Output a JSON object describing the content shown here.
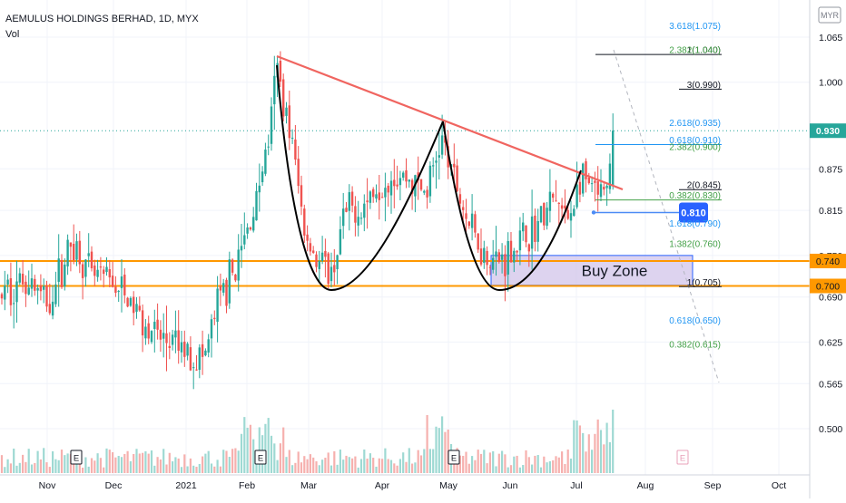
{
  "chart_data": {
    "type": "candlestick",
    "title": "AEMULUS HOLDINGS BERHAD, 1D, MYX",
    "subtitle": "Vol",
    "currency": "MYR",
    "x_labels": [
      "Nov",
      "Dec",
      "2021",
      "Feb",
      "Mar",
      "Apr",
      "May",
      "Jun",
      "Jul",
      "Aug",
      "Sep",
      "Oct"
    ],
    "y_ticks": [
      "1.065",
      "1.000",
      "0.930",
      "0.875",
      "0.815",
      "0.750",
      "0.740",
      "0.700",
      "0.690",
      "0.625",
      "0.565",
      "0.500"
    ],
    "ylim": [
      0.47,
      1.09
    ],
    "last_price": {
      "label": "0.930",
      "value": 0.93
    },
    "alert_price": {
      "label": "0.810",
      "value": 0.812
    },
    "levels": [
      {
        "label": "0.740",
        "value": 0.742
      },
      {
        "label": "0.700",
        "value": 0.706
      }
    ],
    "buy_zone": {
      "label": "Buy Zone",
      "low": 0.707,
      "high": 0.75
    },
    "fib_labels": [
      {
        "text": "3.618(1.075)",
        "value": 1.075,
        "color": "#2196f3"
      },
      {
        "text": "1(1.040)",
        "value": 1.04,
        "color": "#131722"
      },
      {
        "text": "2.382(1.040)",
        "value": 1.04,
        "color": "#43a047"
      },
      {
        "text": "3(0.990)",
        "value": 0.99,
        "color": "#131722"
      },
      {
        "text": "2.618(0.935)",
        "value": 0.935,
        "color": "#2196f3"
      },
      {
        "text": "0.618(0.910)",
        "value": 0.91,
        "color": "#2196f3"
      },
      {
        "text": "2.382(0.900)",
        "value": 0.9,
        "color": "#43a047"
      },
      {
        "text": "2(0.845)",
        "value": 0.845,
        "color": "#131722"
      },
      {
        "text": "0.382(0.830)",
        "value": 0.83,
        "color": "#43a047"
      },
      {
        "text": "1.618(0.790)",
        "value": 0.79,
        "color": "#2196f3"
      },
      {
        "text": "1.382(0.760)",
        "value": 0.76,
        "color": "#43a047"
      },
      {
        "text": "1(0.705)",
        "value": 0.705,
        "color": "#131722"
      },
      {
        "text": "0.618(0.650)",
        "value": 0.65,
        "color": "#2196f3"
      },
      {
        "text": "0.382(0.615)",
        "value": 0.615,
        "color": "#43a047"
      }
    ],
    "earnings_marker": "E",
    "colors": {
      "up": "#26a69a",
      "down": "#ef5350",
      "level": "#ff9800",
      "trendline": "#f06560",
      "pattern": "#000000",
      "zone": "#d1c4e9",
      "badge": "#2962ff",
      "last": "#26a69a"
    }
  }
}
